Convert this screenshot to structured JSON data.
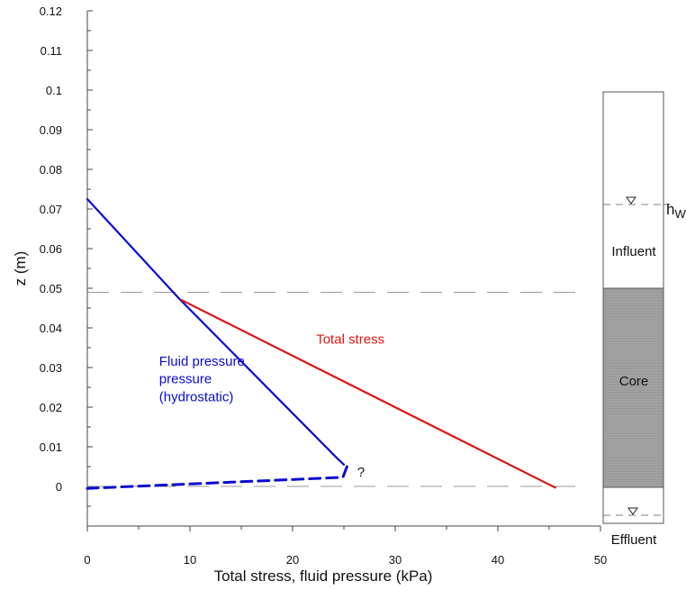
{
  "chart_data": {
    "type": "line",
    "xlabel": "Total stress, fluid pressure (kPa)",
    "ylabel": "z (m)",
    "xlim": [
      0,
      50
    ],
    "ylim": [
      -0.01,
      0.12
    ],
    "x_ticks": [
      0,
      10,
      20,
      30,
      40,
      50
    ],
    "x_tick_labels": [
      "0",
      "10",
      "20",
      "30",
      "40",
      "50"
    ],
    "y_ticks": [
      0,
      0.01,
      0.02,
      0.03,
      0.04,
      0.05,
      0.06,
      0.07,
      0.08,
      0.09,
      0.1,
      0.11,
      0.12
    ],
    "y_tick_labels": [
      "0",
      "0.01",
      "0.02",
      "0.03",
      "0.04",
      "0.05",
      "0.06",
      "0.07",
      "0.08",
      "0.09",
      "0.1",
      "0.11",
      "0.12"
    ],
    "grid": false,
    "reference_lines_z": [
      0.049,
      0
    ],
    "series": [
      {
        "color": "#0a0ad2",
        "style": "solid",
        "points": [
          [
            0,
            0.0725
          ],
          [
            8.9,
            0.0475
          ],
          [
            24.3,
            0.0072
          ],
          [
            25.0,
            0.0055
          ]
        ]
      },
      {
        "color": "#0a0ad2",
        "style": "dashed",
        "points": [
          [
            0,
            -0.0005
          ],
          [
            24.9,
            0.0023
          ],
          [
            25.3,
            0.005
          ]
        ]
      },
      {
        "color": "#dc1414",
        "style": "solid",
        "points": [
          [
            9.2,
            0.047
          ],
          [
            45.6,
            -0.0003
          ]
        ]
      }
    ],
    "annotations": [
      {
        "text": "Total stress",
        "color": "#dc1414",
        "x": 22.3,
        "z": 0.036
      },
      {
        "text": "Fluid pressure",
        "color": "#0a0ad2",
        "x": 7.0,
        "z": 0.0305
      },
      {
        "text": "pressure",
        "color": "#0a0ad2",
        "x": 7.0,
        "z": 0.026
      },
      {
        "text": "(hydrostatic)",
        "color": "#0a0ad2",
        "x": 7.0,
        "z": 0.0215
      },
      {
        "text": "?",
        "color": "#111111",
        "x": 26.3,
        "z": 0.0025
      }
    ]
  },
  "column": {
    "water_level_label_main": "h",
    "water_level_label_sub": "W",
    "influent_label": "Influent",
    "core_label": "Core",
    "effluent_label": "Effluent"
  }
}
